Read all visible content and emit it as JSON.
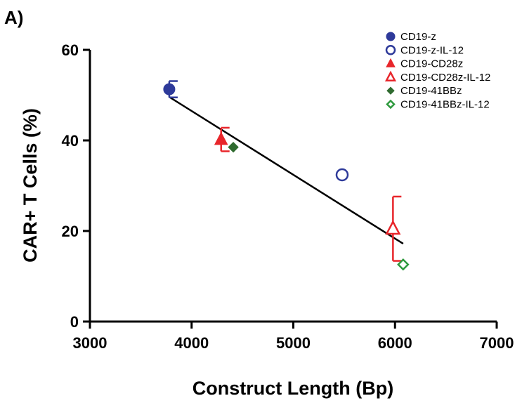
{
  "panel_label": "A)",
  "chart_data": {
    "type": "scatter",
    "title": "",
    "xlabel": "Construct Length (Bp)",
    "ylabel": "CAR+ T Cells (%)",
    "xlim": [
      3000,
      7000
    ],
    "ylim": [
      0,
      60
    ],
    "xticks": [
      "3000",
      "4000",
      "5000",
      "6000",
      "7000"
    ],
    "yticks": [
      "0",
      "20",
      "40",
      "60"
    ],
    "grid": false,
    "legend_position": "top-right",
    "series": [
      {
        "name": "CD19-z",
        "marker": "circle",
        "filled": true,
        "color": "#2e3a9a",
        "x": 3780,
        "y": 51.3,
        "err": 1.8
      },
      {
        "name": "CD19-z-IL-12",
        "marker": "circle",
        "filled": false,
        "color": "#2e3a9a",
        "x": 5480,
        "y": 32.4,
        "err": 0
      },
      {
        "name": "CD19-CD28z",
        "marker": "triangle",
        "filled": true,
        "color": "#e8262b",
        "x": 4290,
        "y": 40.2,
        "err": 2.6
      },
      {
        "name": "CD19-CD28z-IL-12",
        "marker": "triangle",
        "filled": false,
        "color": "#e8262b",
        "x": 5980,
        "y": 20.5,
        "err": 7.1
      },
      {
        "name": "CD19-41BBz",
        "marker": "diamond",
        "filled": true,
        "color": "#2f6b2f",
        "x": 4410,
        "y": 38.5,
        "err": 0
      },
      {
        "name": "CD19-41BBz-IL-12",
        "marker": "diamond",
        "filled": false,
        "color": "#2e9a3e",
        "x": 6080,
        "y": 12.6,
        "err": 0
      }
    ],
    "fit_line": {
      "x": [
        3780,
        6080
      ],
      "y": [
        49.6,
        17.2
      ],
      "color": "#000000"
    }
  }
}
